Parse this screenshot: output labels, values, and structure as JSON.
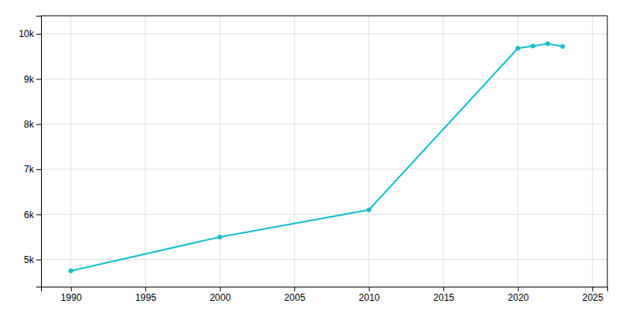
{
  "chart_data": {
    "type": "line",
    "x": [
      1990,
      2000,
      2010,
      2020,
      2021,
      2022,
      2023
    ],
    "values": [
      4750,
      5500,
      6100,
      9680,
      9730,
      9780,
      9720
    ],
    "color": "#17becf",
    "marker": "circle",
    "grid": true,
    "xlim": [
      1988,
      2026
    ],
    "ylim": [
      4400,
      10400
    ],
    "xticks": [
      1990,
      1995,
      2000,
      2005,
      2010,
      2015,
      2020,
      2025
    ],
    "yticks": [
      {
        "value": 5000,
        "label": "5k"
      },
      {
        "value": 6000,
        "label": "6k"
      },
      {
        "value": 7000,
        "label": "7k"
      },
      {
        "value": 8000,
        "label": "8k"
      },
      {
        "value": 9000,
        "label": "9k"
      },
      {
        "value": 10000,
        "label": "10k"
      }
    ]
  }
}
